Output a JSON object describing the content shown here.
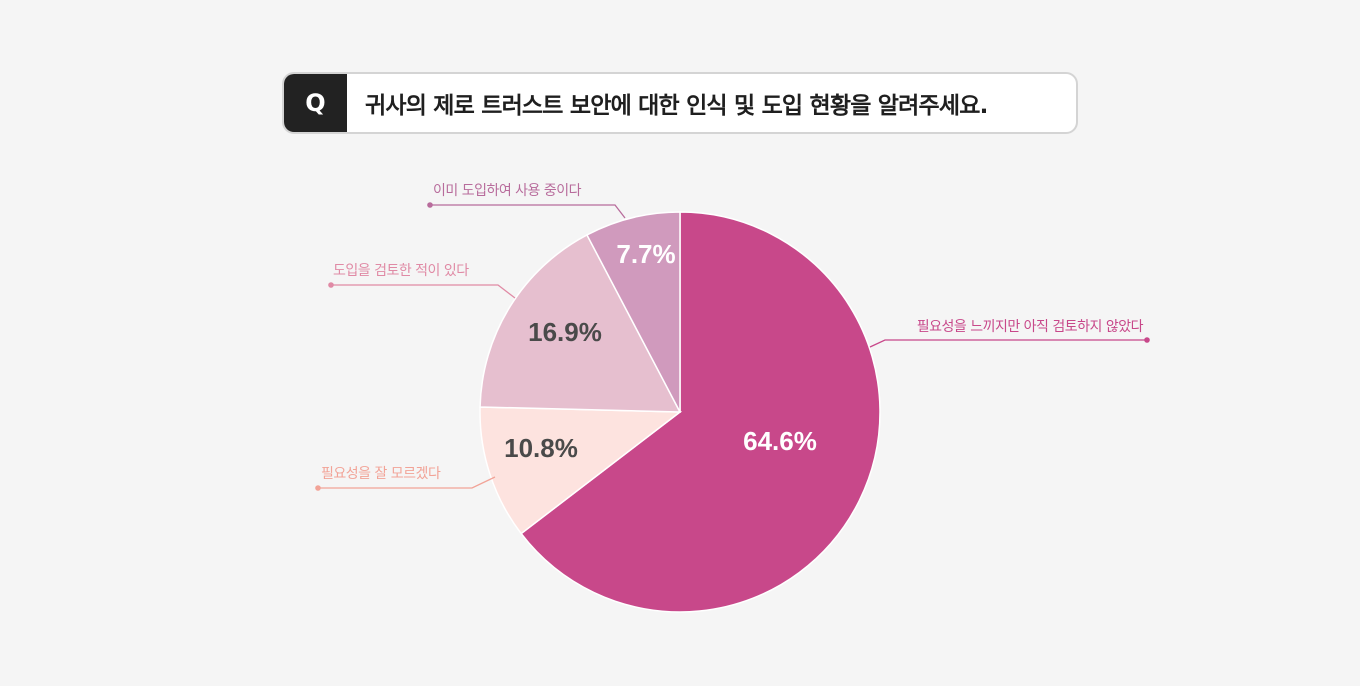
{
  "question": {
    "marker": "Q",
    "text": "귀사의 제로 트러스트 보안에 대한 인식 및 도입 현황을 알려주세요."
  },
  "chart_data": {
    "type": "pie",
    "start": "top",
    "direction": "clockwise",
    "slices": [
      {
        "label": "필요성을 느끼지만 아직 검토하지 않았다",
        "value": 64.6,
        "value_label": "64.6%",
        "color": "#c8488a",
        "label_color": "#c8488a",
        "value_text_color": "#ffffff"
      },
      {
        "label": "필요성을 잘 모르겠다",
        "value": 10.8,
        "value_label": "10.8%",
        "color": "#fde3df",
        "label_color": "#f2a397",
        "value_text_color": "#4a4a4a"
      },
      {
        "label": "도입을 검토한 적이 있다",
        "value": 16.9,
        "value_label": "16.9%",
        "color": "#e6bfcf",
        "label_color": "#e08aa5",
        "value_text_color": "#4a4a4a"
      },
      {
        "label": "이미 도입하여 사용 중이다",
        "value": 7.7,
        "value_label": "7.7%",
        "color": "#d09abd",
        "label_color": "#b86c9c",
        "value_text_color": "#ffffff"
      }
    ]
  }
}
